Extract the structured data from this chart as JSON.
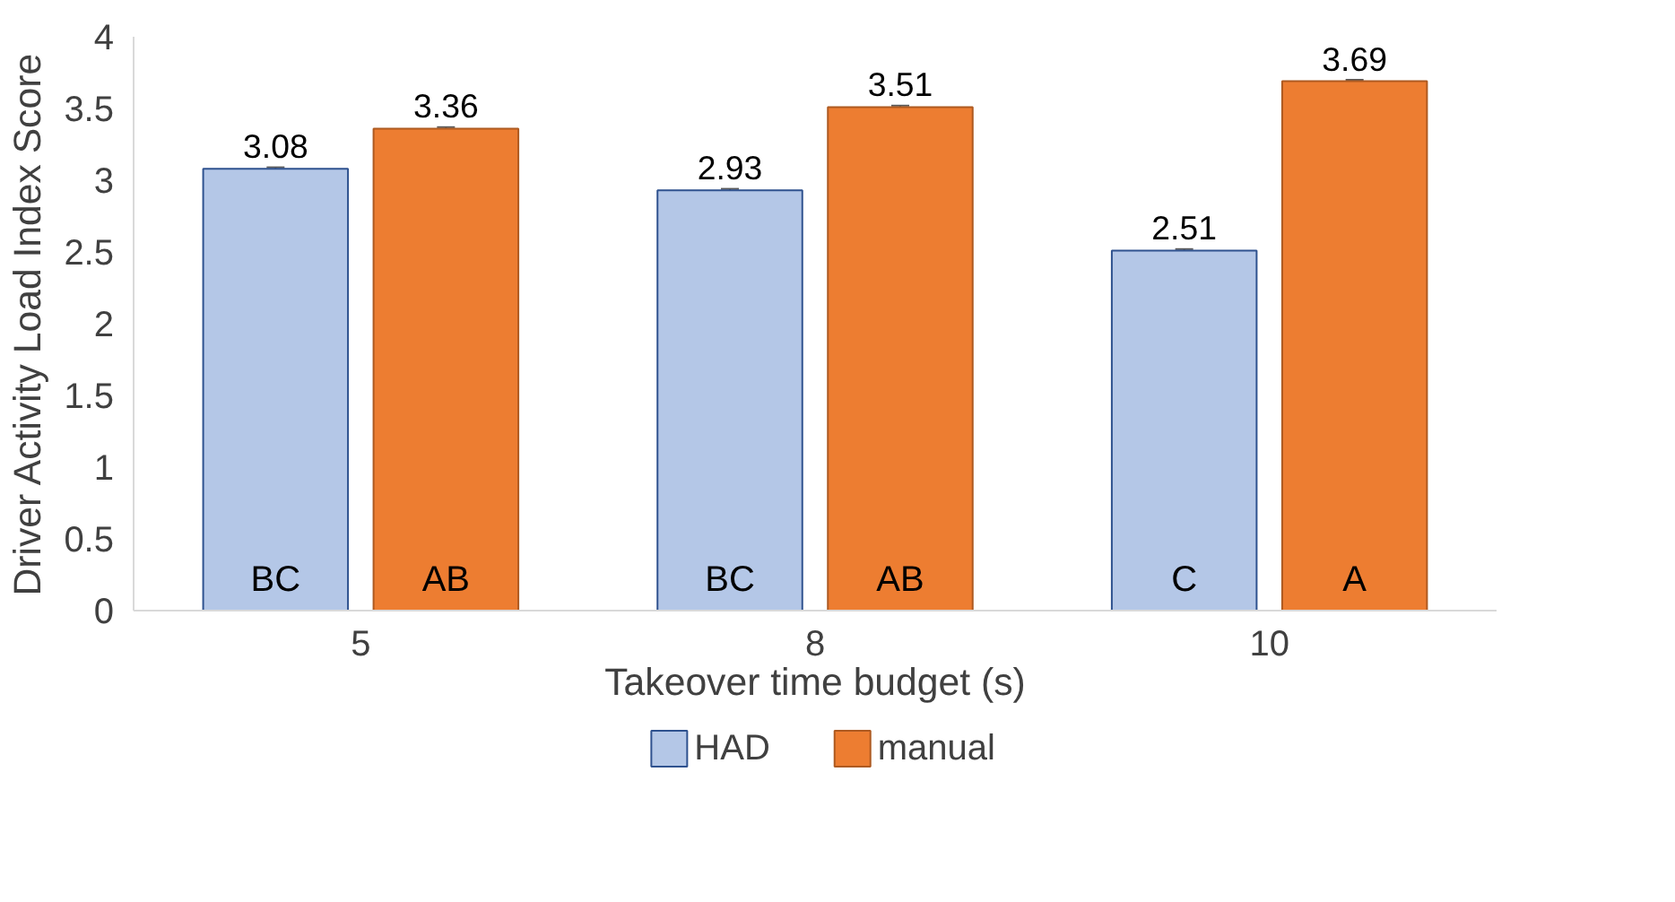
{
  "chart_data": {
    "type": "bar",
    "xlabel": "Takeover time budget (s)",
    "ylabel": "Driver Activity Load Index Score",
    "categories": [
      "5",
      "8",
      "10"
    ],
    "series": [
      {
        "name": "HAD",
        "color": "#b4c7e7",
        "values": [
          3.08,
          2.93,
          2.51
        ],
        "errors": [
          0.01,
          0.01,
          0.01
        ]
      },
      {
        "name": "manual",
        "color": "#ed7d31",
        "values": [
          3.36,
          3.51,
          3.69
        ],
        "errors": [
          0.01,
          0.01,
          0.01
        ]
      }
    ],
    "ylim": [
      0,
      4
    ],
    "yticks": [
      0,
      0.5,
      1,
      1.5,
      2,
      2.5,
      3,
      3.5,
      4
    ],
    "grid": false,
    "legend": "bottom",
    "data_labels": true,
    "annotations": [
      "BC",
      "AB",
      "BC",
      "AB",
      "C",
      "A"
    ]
  }
}
